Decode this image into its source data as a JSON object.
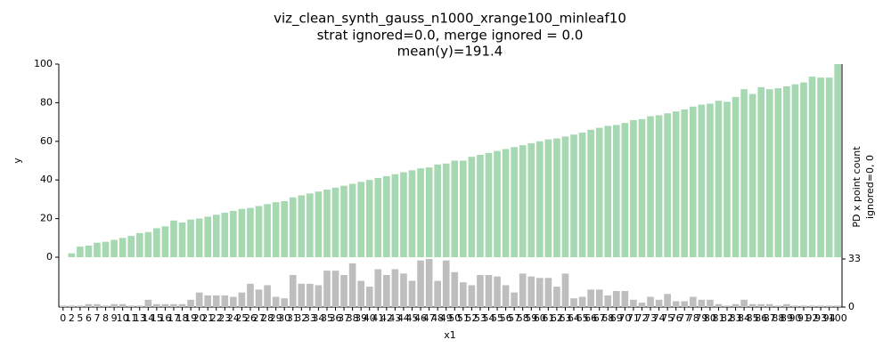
{
  "chart_data": {
    "type": "bar",
    "title": [
      "viz_clean_synth_gauss_n1000_xrange100_minleaf10",
      "strat ignored=0.0, merge ignored = 0.0",
      "mean(y)=191.4"
    ],
    "xlabel": "x1",
    "categories": [
      0,
      2,
      5,
      6,
      7,
      8,
      9,
      10,
      11,
      13,
      14,
      15,
      16,
      17,
      18,
      19,
      20,
      21,
      22,
      23,
      24,
      25,
      26,
      27,
      28,
      29,
      30,
      31,
      32,
      33,
      34,
      35,
      36,
      37,
      38,
      39,
      40,
      41,
      42,
      43,
      44,
      45,
      46,
      47,
      48,
      49,
      50,
      51,
      52,
      53,
      54,
      55,
      56,
      57,
      58,
      59,
      60,
      61,
      62,
      63,
      64,
      65,
      66,
      67,
      68,
      69,
      70,
      71,
      72,
      73,
      74,
      75,
      76,
      77,
      78,
      79,
      80,
      81,
      82,
      83,
      84,
      85,
      86,
      87,
      88,
      89,
      90,
      91,
      92,
      93,
      94,
      100
    ],
    "panels": [
      {
        "ylabel": [
          "y"
        ],
        "axis_side": "left",
        "color": "#a6d8b2",
        "ylim": [
          0,
          100
        ],
        "yticks": [
          0,
          20,
          40,
          60,
          80,
          100
        ],
        "values": [
          0,
          2,
          5.5,
          6,
          7.5,
          8,
          9,
          10,
          11,
          12.5,
          13,
          15,
          16,
          19,
          18,
          19.5,
          20,
          21,
          22,
          23,
          24,
          25,
          25.5,
          26.5,
          27.5,
          28.5,
          29,
          31,
          32,
          33,
          34,
          35,
          36,
          37,
          38,
          39,
          40,
          41,
          42,
          43,
          44,
          45,
          46,
          46.5,
          48,
          48.5,
          50,
          50,
          52,
          53,
          54,
          55,
          56,
          57,
          58,
          59,
          60,
          61,
          61.5,
          62.5,
          63.5,
          64.5,
          66,
          67,
          68,
          68.5,
          69.5,
          71,
          71.5,
          73,
          73.5,
          74.5,
          75.5,
          76.5,
          78,
          79,
          79.5,
          81,
          80.5,
          83,
          87,
          84.5,
          88,
          87,
          87.5,
          88.5,
          89.5,
          90.5,
          93.5,
          93,
          93,
          100
        ]
      },
      {
        "ylabel": [
          "PD x point count",
          "ignored=0, 0"
        ],
        "axis_side": "right",
        "color": "#bebebe",
        "ylim": [
          0,
          33
        ],
        "yticks": [
          0,
          33
        ],
        "values": [
          1,
          1,
          1,
          2,
          2,
          1,
          2,
          2,
          1,
          1,
          5,
          2,
          2,
          2,
          2,
          5,
          10,
          8,
          8,
          8,
          7,
          10,
          16,
          12,
          15,
          7,
          6,
          22,
          16,
          16,
          15,
          25,
          25,
          22,
          30,
          18,
          14,
          26,
          22,
          26,
          23,
          18,
          32,
          33,
          18,
          32,
          24,
          17,
          15,
          22,
          22,
          21,
          15,
          10,
          23,
          21,
          20,
          20,
          14,
          23,
          6,
          7,
          12,
          12,
          8,
          11,
          11,
          5,
          3,
          7,
          5,
          9,
          4,
          4,
          7,
          5,
          5,
          2,
          1,
          2,
          5,
          2,
          2,
          2,
          1,
          2,
          1,
          1,
          1,
          1,
          1,
          1
        ]
      }
    ]
  }
}
